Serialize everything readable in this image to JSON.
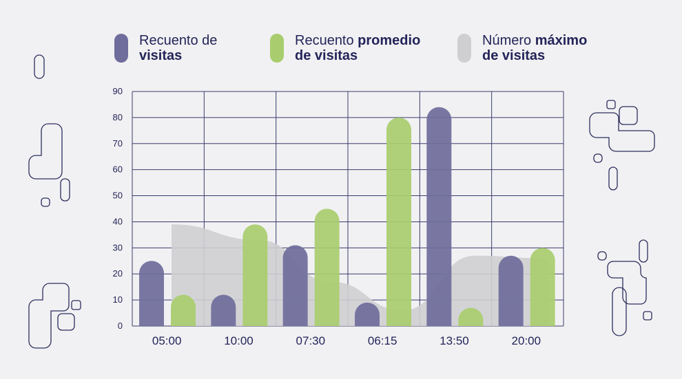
{
  "legend": {
    "visits": {
      "pre": "Recuento de",
      "bold": "visitas",
      "color": "#6f6d9b"
    },
    "average": {
      "pre": "Recuento ",
      "bold_inline": "promedio",
      "bold": "de visitas",
      "color": "#a9cd6e"
    },
    "maximum": {
      "pre": "Número ",
      "bold_inline": "máximo",
      "bold": "de visitas",
      "color": "#cfcfd2"
    }
  },
  "chart_data": {
    "type": "bar",
    "categories": [
      "05:00",
      "10:00",
      "07:30",
      "06:15",
      "13:50",
      "20:00"
    ],
    "series": [
      {
        "name": "Recuento de visitas",
        "type": "bar",
        "color": "#6f6d9b",
        "values": [
          25,
          12,
          31,
          9,
          84,
          27
        ]
      },
      {
        "name": "Recuento promedio de visitas",
        "type": "bar",
        "color": "#a9cd6e",
        "values": [
          12,
          39,
          45,
          80,
          7,
          30
        ]
      },
      {
        "name": "Número máximo de visitas",
        "type": "area",
        "color": "#cfcfd2",
        "values": [
          39,
          33,
          17,
          6,
          27,
          26
        ]
      }
    ],
    "y_ticks": [
      "0",
      "10",
      "20",
      "30",
      "40",
      "50",
      "60",
      "70",
      "80",
      "90"
    ],
    "ylim": [
      0,
      90
    ],
    "grid": true,
    "legend_position": "top"
  }
}
